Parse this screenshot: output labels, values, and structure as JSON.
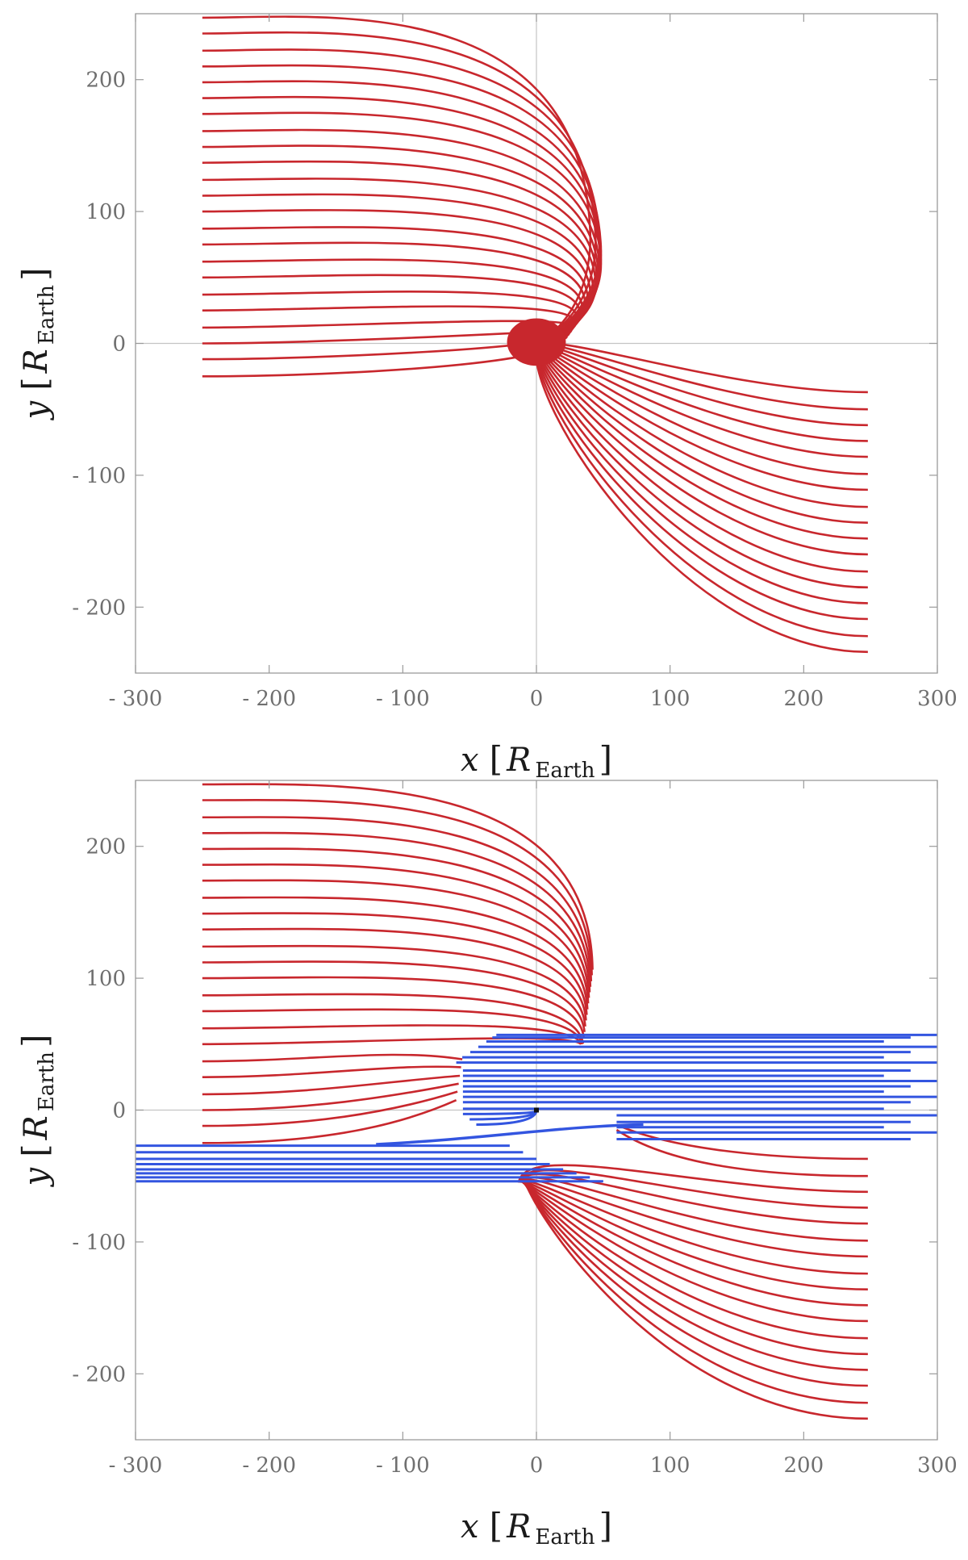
{
  "chart_data": [
    {
      "type": "line",
      "title": "",
      "xlabel_var": "x",
      "xlabel_unit": "R",
      "xlabel_sub": "Earth",
      "ylabel_var": "y",
      "ylabel_unit": "R",
      "ylabel_sub": "Earth",
      "xlim": [
        -300,
        300
      ],
      "ylim": [
        -250,
        250
      ],
      "xticks": [
        -300,
        -200,
        -100,
        0,
        100,
        200,
        300
      ],
      "yticks": [
        -200,
        -100,
        0,
        100,
        200
      ],
      "xtick_labels": [
        "- 300",
        "- 200",
        "- 100",
        "0",
        "100",
        "200",
        "300"
      ],
      "ytick_labels": [
        "- 200",
        "- 100",
        "0",
        "100",
        "200"
      ],
      "grid": false,
      "colors": {
        "field_lines": "#c8272d"
      },
      "series": [
        {
          "name": "field lines (upper-left family)",
          "start_x": -250,
          "start_y": [
            -25,
            -12,
            0,
            12,
            25,
            37,
            50,
            62,
            75,
            87,
            100,
            112,
            124,
            137,
            149,
            161,
            174,
            186,
            198,
            210,
            222,
            235,
            247
          ],
          "apex_x": [
            20,
            22,
            24,
            26,
            28,
            30,
            32,
            34,
            36,
            38,
            40,
            42,
            44,
            45,
            46,
            47,
            48,
            48,
            48,
            48,
            47,
            44,
            40
          ],
          "end_point": [
            0,
            0
          ]
        },
        {
          "name": "field lines (lower-right family)",
          "start_x": 248,
          "start_y": [
            -37,
            -50,
            -62,
            -74,
            -86,
            -99,
            -111,
            -124,
            -136,
            -148,
            -160,
            -173,
            -185,
            -197,
            -209,
            -222,
            -234
          ],
          "end_point": [
            0,
            0
          ]
        }
      ]
    },
    {
      "type": "line",
      "title": "",
      "xlabel_var": "x",
      "xlabel_unit": "R",
      "xlabel_sub": "Earth",
      "ylabel_var": "y",
      "ylabel_unit": "R",
      "ylabel_sub": "Earth",
      "xlim": [
        -300,
        300
      ],
      "ylim": [
        -250,
        250
      ],
      "xticks": [
        -300,
        -200,
        -100,
        0,
        100,
        200,
        300
      ],
      "yticks": [
        -200,
        -100,
        0,
        100,
        200
      ],
      "xtick_labels": [
        "- 300",
        "- 200",
        "- 100",
        "0",
        "100",
        "200",
        "300"
      ],
      "ytick_labels": [
        "- 200",
        "- 100",
        "0",
        "100",
        "200"
      ],
      "grid": false,
      "colors": {
        "field_lines": "#c8272d",
        "open_lines": "#3355e0",
        "marker": "#111111"
      },
      "series": [
        {
          "name": "field lines (upper-left family, truncated)",
          "start_x": -250,
          "start_y": [
            -25,
            -12,
            0,
            12,
            25,
            37,
            50,
            62,
            75,
            87,
            100,
            112,
            124,
            137,
            149,
            161,
            174,
            186,
            198,
            210,
            222,
            235,
            247
          ]
        },
        {
          "name": "field lines (lower-right family, truncated)",
          "start_x": 248,
          "start_y": [
            -37,
            -50,
            -62,
            -74,
            -86,
            -99,
            -111,
            -124,
            -136,
            -148,
            -160,
            -173,
            -185,
            -197,
            -209,
            -222,
            -234
          ]
        },
        {
          "name": "blue lines (right side)",
          "end_x": 300,
          "y": [
            57,
            55,
            52,
            48,
            44,
            40,
            36,
            30,
            26,
            22,
            18,
            14,
            10,
            6,
            1,
            -4,
            -9,
            -13,
            -17,
            -22
          ]
        },
        {
          "name": "blue lines (left side)",
          "start_x": -300,
          "y": [
            -27,
            -32,
            -37,
            -41,
            -45,
            -48,
            -51,
            -54
          ]
        },
        {
          "name": "marker",
          "x": [
            0
          ],
          "y": [
            0
          ]
        }
      ]
    }
  ]
}
